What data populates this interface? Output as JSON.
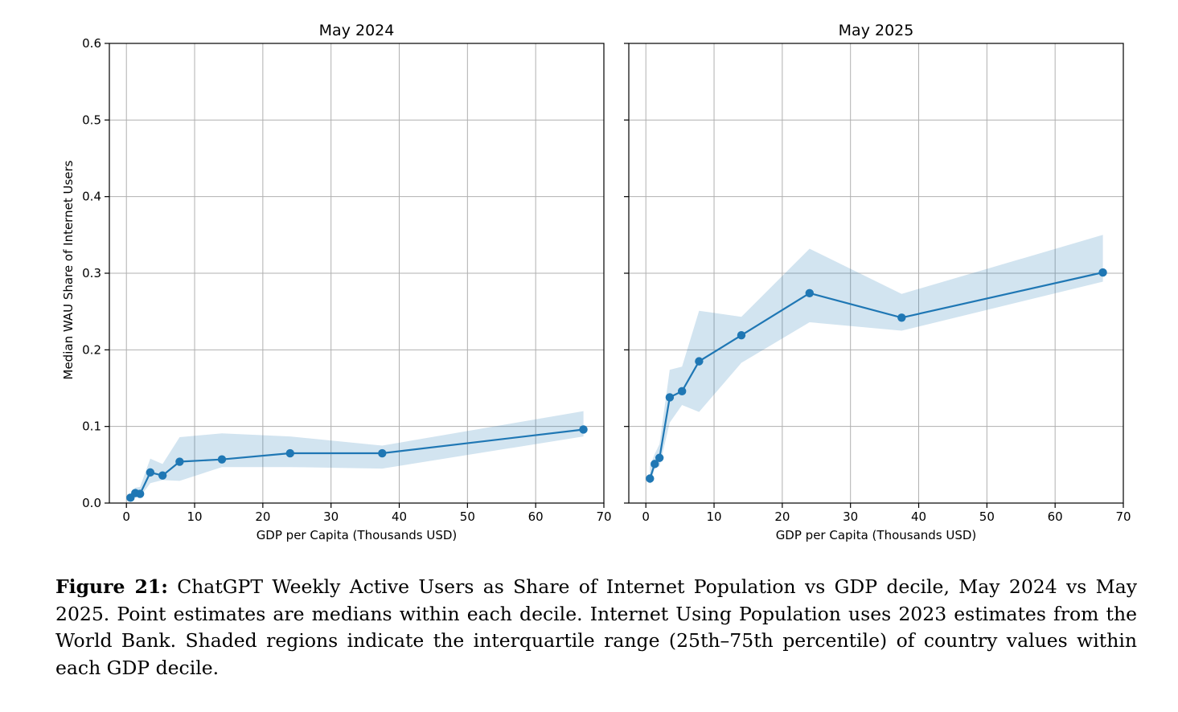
{
  "chart_data": [
    {
      "type": "line",
      "title": "May 2024",
      "xlabel": "GDP per Capita (Thousands USD)",
      "ylabel": "Median WAU Share of Internet Users",
      "xlim": [
        -2.5,
        70
      ],
      "ylim": [
        0,
        0.6
      ],
      "xticks": [
        0,
        10,
        20,
        30,
        40,
        50,
        60,
        70
      ],
      "yticks": [
        0.0,
        0.1,
        0.2,
        0.3,
        0.4,
        0.5,
        0.6
      ],
      "ytick_labels": [
        "0.0",
        "0.1",
        "0.2",
        "0.3",
        "0.4",
        "0.5",
        "0.6"
      ],
      "grid": true,
      "color": "#1f77b4",
      "x": [
        0.6,
        1.3,
        2.0,
        3.5,
        5.3,
        7.8,
        14.0,
        24.0,
        37.5,
        67.0
      ],
      "y": [
        0.007,
        0.013,
        0.012,
        0.04,
        0.036,
        0.054,
        0.057,
        0.065,
        0.065,
        0.096
      ],
      "iqr_low": [
        0.004,
        0.009,
        0.008,
        0.026,
        0.03,
        0.029,
        0.047,
        0.047,
        0.045,
        0.087
      ],
      "iqr_high": [
        0.011,
        0.02,
        0.021,
        0.058,
        0.051,
        0.086,
        0.091,
        0.087,
        0.075,
        0.12
      ]
    },
    {
      "type": "line",
      "title": "May 2025",
      "xlabel": "GDP per Capita (Thousands USD)",
      "ylabel": "",
      "xlim": [
        -2.5,
        70
      ],
      "ylim": [
        0,
        0.6
      ],
      "xticks": [
        0,
        10,
        20,
        30,
        40,
        50,
        60,
        70
      ],
      "yticks": [
        0.0,
        0.1,
        0.2,
        0.3,
        0.4,
        0.5,
        0.6
      ],
      "ytick_labels": [],
      "grid": true,
      "color": "#1f77b4",
      "x": [
        0.6,
        1.3,
        2.0,
        3.5,
        5.3,
        7.8,
        14.0,
        24.0,
        37.5,
        67.0
      ],
      "y": [
        0.032,
        0.051,
        0.059,
        0.138,
        0.146,
        0.185,
        0.219,
        0.274,
        0.242,
        0.301
      ],
      "iqr_low": [
        0.024,
        0.045,
        0.048,
        0.105,
        0.128,
        0.119,
        0.183,
        0.236,
        0.225,
        0.289
      ],
      "iqr_high": [
        0.048,
        0.064,
        0.077,
        0.174,
        0.178,
        0.251,
        0.243,
        0.332,
        0.273,
        0.35
      ]
    }
  ],
  "caption": {
    "label": "Figure 21:",
    "text": " ChatGPT Weekly Active Users as Share of Internet Population vs GDP decile, May 2024 vs May 2025. Point estimates are medians within each decile. Internet Using Population uses 2023 estimates from the World Bank. Shaded regions indicate the interquartile range (25th–75th percentile) of country values within each GDP decile."
  }
}
